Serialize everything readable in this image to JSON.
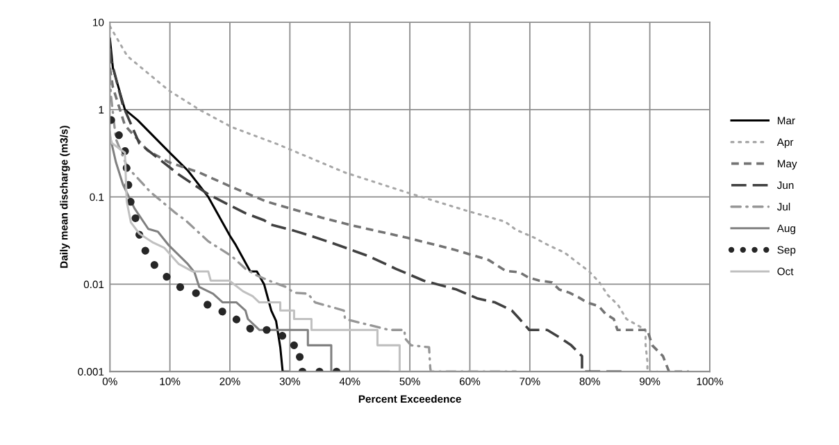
{
  "chart_data": {
    "type": "line",
    "xlabel": "Percent Exceedence",
    "ylabel": "Daily mean discharge (m3/s)",
    "log": "y",
    "xlim": [
      0,
      100
    ],
    "xticks": [
      {
        "value": 0,
        "label": "0%"
      },
      {
        "value": 10,
        "label": "10%"
      },
      {
        "value": 20,
        "label": "20%"
      },
      {
        "value": 30,
        "label": "30%"
      },
      {
        "value": 40,
        "label": "40%"
      },
      {
        "value": 50,
        "label": "50%"
      },
      {
        "value": 60,
        "label": "60%"
      },
      {
        "value": 70,
        "label": "70%"
      },
      {
        "value": 80,
        "label": "80%"
      },
      {
        "value": 90,
        "label": "90%"
      },
      {
        "value": 100,
        "label": "100%"
      }
    ],
    "ylim": [
      0.001,
      10
    ],
    "yticks": [
      0.001,
      0.01,
      0.1,
      1,
      10
    ],
    "grid": true,
    "legend": "right",
    "marker": "none",
    "series": [
      {
        "name": "Mar",
        "color": "#000000",
        "line_style": "solid",
        "x": [
          0,
          0.5,
          2.5,
          4.6,
          10,
          13,
          16.4,
          20,
          21,
          23.4,
          24.5,
          25.7,
          26.9,
          27.7,
          28.4,
          28.8,
          29.7
        ],
        "values": [
          6.5,
          3,
          1.0,
          0.76,
          0.32,
          0.2,
          0.1,
          0.036,
          0.028,
          0.014,
          0.014,
          0.01,
          0.005,
          0.0038,
          0.0019,
          0.001,
          0.001
        ]
      },
      {
        "name": "Apr",
        "color": "#a6a6a6",
        "line_style": "dotted",
        "x": [
          0,
          1.5,
          2.9,
          9.8,
          14.9,
          20.3,
          28,
          39.2,
          49.6,
          59.3,
          65.9,
          67.7,
          70.8,
          73.1,
          75.8,
          77.8,
          79.9,
          81.6,
          83,
          84.7,
          86.1,
          89.3,
          89.3,
          89.6,
          89.6,
          91.3
        ],
        "values": [
          9,
          6,
          4.1,
          1.66,
          1.0,
          0.63,
          0.4,
          0.19,
          0.112,
          0.07,
          0.052,
          0.042,
          0.034,
          0.028,
          0.023,
          0.018,
          0.014,
          0.0105,
          0.0075,
          0.0058,
          0.004,
          0.003,
          0.002,
          0.0013,
          0.001,
          0.001
        ]
      },
      {
        "name": "May",
        "color": "#737373",
        "line_style": "dashed",
        "x": [
          0,
          0.5,
          2.5,
          6.3,
          9.8,
          14.9,
          20.3,
          26,
          30,
          35.3,
          39.9,
          45.7,
          49.6,
          57.3,
          63.1,
          66,
          68.3,
          69.7,
          71.6,
          73.7,
          74.9,
          76.6,
          78.1,
          79.5,
          81.5,
          82.6,
          84,
          84.6,
          89.6,
          90.4,
          92.2,
          93.2,
          96.5
        ],
        "values": [
          3,
          1.8,
          0.66,
          0.34,
          0.25,
          0.19,
          0.13,
          0.089,
          0.074,
          0.058,
          0.048,
          0.039,
          0.034,
          0.025,
          0.019,
          0.0142,
          0.0137,
          0.012,
          0.011,
          0.0105,
          0.0087,
          0.008,
          0.0071,
          0.0062,
          0.0056,
          0.0046,
          0.004,
          0.003,
          0.003,
          0.002,
          0.0015,
          0.001,
          0.001
        ]
      },
      {
        "name": "Jun",
        "color": "#404040",
        "line_style": "longdash",
        "x": [
          0,
          0.2,
          2.2,
          4.9,
          11.5,
          16.4,
          22.6,
          25.7,
          26.9,
          30.7,
          33.4,
          38.1,
          43.1,
          47.7,
          52.3,
          57.8,
          61.2,
          64.2,
          67,
          68.3,
          69.9,
          72.9,
          75.2,
          76.9,
          78.7,
          78.7,
          85.5
        ],
        "values": [
          5,
          3.7,
          1.1,
          0.41,
          0.18,
          0.107,
          0.065,
          0.054,
          0.048,
          0.041,
          0.036,
          0.028,
          0.021,
          0.015,
          0.011,
          0.0087,
          0.0069,
          0.0062,
          0.005,
          0.004,
          0.003,
          0.003,
          0.0024,
          0.002,
          0.0015,
          0.001,
          0.001
        ]
      },
      {
        "name": "Jul",
        "color": "#969696",
        "line_style": "dashdot",
        "x": [
          0,
          0.2,
          1,
          2.9,
          6.8,
          11,
          12.6,
          16.4,
          20.3,
          22.6,
          24.5,
          26.5,
          29.2,
          30.7,
          33,
          34.2,
          37.3,
          39,
          39.2,
          46.5,
          49.1,
          49.2,
          50.2,
          53.2,
          53.4,
          53.5,
          67.7
        ],
        "values": [
          2.5,
          1.4,
          0.46,
          0.22,
          0.113,
          0.065,
          0.054,
          0.031,
          0.021,
          0.015,
          0.0126,
          0.011,
          0.0094,
          0.008,
          0.0078,
          0.0062,
          0.0054,
          0.005,
          0.004,
          0.003,
          0.003,
          0.0024,
          0.002,
          0.0019,
          0.0011,
          0.001,
          0.001
        ]
      },
      {
        "name": "Aug",
        "color": "#808080",
        "line_style": "solid",
        "x": [
          0,
          1,
          2.2,
          4.1,
          6.4,
          8,
          9.8,
          13,
          14.1,
          14.9,
          17.2,
          18.8,
          21.1,
          22.6,
          23,
          24.9,
          33,
          33,
          36.9,
          36.9,
          46.5
        ],
        "values": [
          0.5,
          0.25,
          0.137,
          0.074,
          0.043,
          0.04,
          0.028,
          0.017,
          0.0137,
          0.0093,
          0.0078,
          0.0062,
          0.0062,
          0.005,
          0.004,
          0.003,
          0.003,
          0.002,
          0.002,
          0.001,
          0.001
        ]
      },
      {
        "name": "Sep",
        "color": "#262626",
        "line_style": "dotted",
        "x": [
          0.2,
          1.4,
          2.5,
          2.8,
          3.1,
          3.5,
          4.3,
          4.9,
          5.8,
          6.9,
          8.6,
          10.2,
          12,
          14.3,
          15.6,
          18.2,
          19.5,
          22.1,
          23.6,
          26.6,
          28.7,
          29.7,
          31.6,
          31.7,
          34.1,
          37.9,
          40.5
        ],
        "values": [
          0.76,
          0.53,
          0.35,
          0.21,
          0.133,
          0.084,
          0.056,
          0.037,
          0.025,
          0.018,
          0.0139,
          0.0109,
          0.009,
          0.008,
          0.006,
          0.0054,
          0.0042,
          0.0038,
          0.003,
          0.003,
          0.0026,
          0.002,
          0.002,
          0.001,
          0.001,
          0.001,
          0.001
        ]
      },
      {
        "name": "Oct",
        "color": "#c0c0c0",
        "line_style": "solid",
        "x": [
          0,
          0.2,
          2.5,
          2.8,
          3.5,
          4.9,
          7.2,
          9.1,
          11.5,
          13.8,
          16.4,
          16.8,
          19.9,
          22.2,
          23.8,
          24.9,
          28.4,
          28.4,
          30.7,
          30.7,
          33.6,
          33.6,
          44.6,
          44.6,
          48.3,
          48.3,
          65.4
        ],
        "values": [
          0.55,
          0.42,
          0.32,
          0.089,
          0.051,
          0.038,
          0.03,
          0.026,
          0.017,
          0.014,
          0.014,
          0.011,
          0.011,
          0.0083,
          0.0073,
          0.0062,
          0.0062,
          0.005,
          0.005,
          0.004,
          0.004,
          0.003,
          0.003,
          0.002,
          0.002,
          0.001,
          0.001
        ]
      }
    ]
  }
}
